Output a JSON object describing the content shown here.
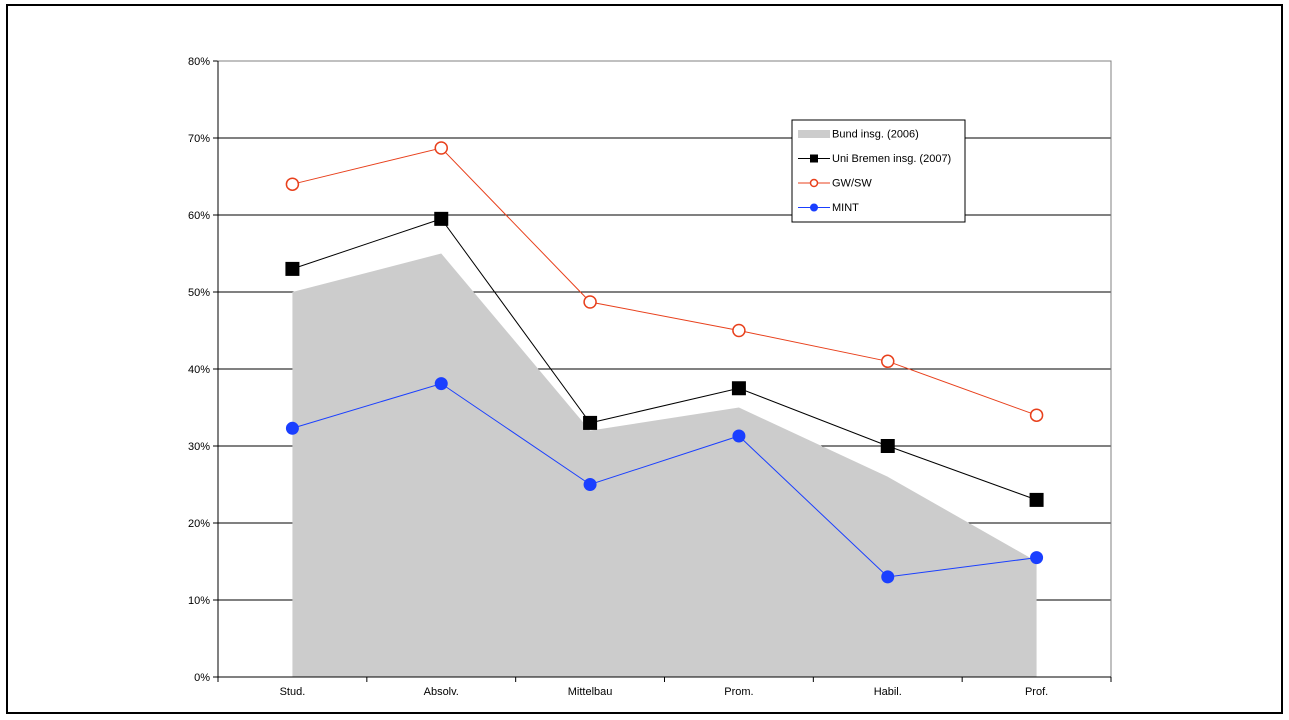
{
  "chart_data": {
    "type": "line",
    "title": "",
    "xlabel": "",
    "ylabel": "",
    "categories": [
      "Stud.",
      "Absolv.",
      "Mittelbau",
      "Prom.",
      "Habil.",
      "Prof."
    ],
    "ylim": [
      0,
      80
    ],
    "yticks": [
      0,
      10,
      20,
      30,
      40,
      50,
      60,
      70,
      80
    ],
    "ytick_suffix": "%",
    "grid": true,
    "legend_position": "top-right",
    "series": [
      {
        "name": "Bund insg. (2006)",
        "kind": "area",
        "color": "#cccccc",
        "values": [
          50,
          55,
          32,
          35,
          26,
          15
        ]
      },
      {
        "name": "Uni Bremen insg. (2007)",
        "kind": "line",
        "marker": "square",
        "color": "#000000",
        "values": [
          53,
          59.5,
          33,
          37.5,
          30,
          23
        ]
      },
      {
        "name": "GW/SW",
        "kind": "line",
        "marker": "open-circle",
        "color": "#e8401c",
        "values": [
          64,
          68.7,
          48.7,
          45,
          41,
          34
        ]
      },
      {
        "name": "MINT",
        "kind": "line",
        "marker": "filled-circle",
        "color": "#1a3fff",
        "values": [
          32.3,
          38.1,
          25,
          31.3,
          13,
          15.5
        ]
      }
    ]
  }
}
